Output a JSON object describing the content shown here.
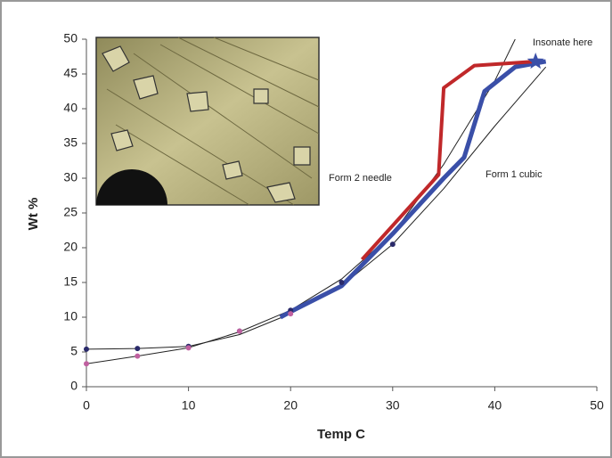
{
  "chart_data": {
    "type": "line",
    "x_label": "Temp C",
    "y_label": "Wt %",
    "xlim": [
      0,
      50
    ],
    "xticks": [
      0,
      10,
      20,
      30,
      40,
      50
    ],
    "ylim": [
      0,
      50
    ],
    "yticks": [
      0,
      5,
      10,
      15,
      20,
      25,
      30,
      35,
      40,
      45,
      50
    ],
    "series": [
      {
        "name": "Form 2 needle",
        "color": "#222222",
        "line_width": 1,
        "x": [
          0,
          5,
          10,
          15,
          20,
          25,
          30,
          35,
          40,
          42
        ],
        "values": [
          3.3,
          4.4,
          5.6,
          7.9,
          11,
          15.5,
          22,
          32,
          44,
          50
        ]
      },
      {
        "name": "Form 1 cubic",
        "color": "#222222",
        "line_width": 1,
        "x": [
          0,
          5,
          10,
          15,
          20,
          25,
          30,
          35,
          40,
          45
        ],
        "values": [
          5.4,
          5.5,
          5.8,
          7.5,
          10.5,
          14.5,
          20.5,
          28.5,
          37.5,
          46
        ]
      },
      {
        "color": "#3a4fa8",
        "line_width": 5,
        "x": [
          19,
          20,
          25,
          30,
          35,
          37,
          39,
          42,
          45
        ],
        "values": [
          10,
          10.8,
          14.5,
          22,
          30,
          33,
          42.5,
          46,
          46.8
        ]
      },
      {
        "color": "#c0282a",
        "line_width": 4,
        "x": [
          27,
          34.5,
          35,
          38,
          44
        ],
        "values": [
          18.3,
          30.5,
          43,
          46.2,
          46.8
        ]
      },
      {
        "color": "#2a2a6a",
        "marker": "dot",
        "x": [
          0,
          5,
          10,
          15,
          20,
          25,
          30
        ],
        "values": [
          5.4,
          5.5,
          5.8,
          8,
          11,
          15,
          20.5
        ]
      },
      {
        "color": "#c060a0",
        "marker": "dot",
        "x": [
          0,
          5,
          10,
          15,
          20
        ],
        "values": [
          3.3,
          4.4,
          5.6,
          8,
          10.5
        ]
      },
      {
        "name": "Insonate here",
        "color": "#3a4fa8",
        "marker": "star",
        "x": [
          44
        ],
        "values": [
          46.8
        ]
      }
    ]
  }
}
